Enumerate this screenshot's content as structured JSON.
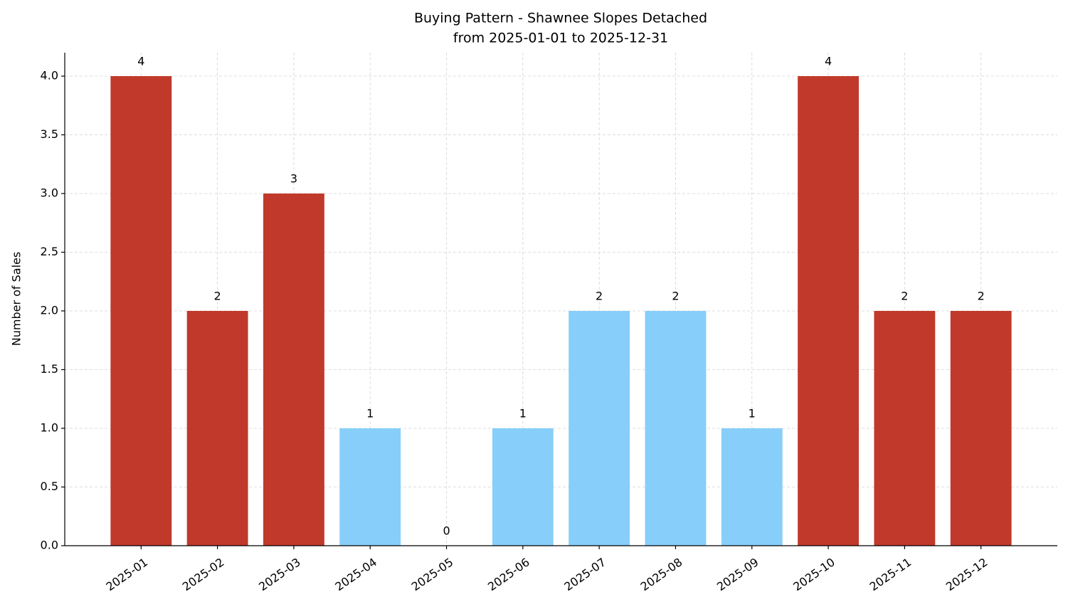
{
  "chart_data": {
    "type": "bar",
    "title": "Buying Pattern - Shawnee Slopes Detached",
    "subtitle": "from 2025-01-01 to 2025-12-31",
    "y_label": "Number of Sales",
    "categories": [
      "2025-01",
      "2025-02",
      "2025-03",
      "2025-04",
      "2025-05",
      "2025-06",
      "2025-07",
      "2025-08",
      "2025-09",
      "2025-10",
      "2025-11",
      "2025-12"
    ],
    "values": [
      4,
      2,
      3,
      1,
      0,
      1,
      2,
      2,
      1,
      4,
      2,
      2
    ],
    "colors": [
      "#c0392b",
      "#c0392b",
      "#c0392b",
      "#87cefa",
      "#87cefa",
      "#87cefa",
      "#87cefa",
      "#87cefa",
      "#87cefa",
      "#c0392b",
      "#c0392b",
      "#c0392b"
    ],
    "ylim": [
      0,
      4.2
    ],
    "yticks": [
      {
        "value": 0,
        "label": "0.0"
      },
      {
        "value": 0.5,
        "label": "0.5"
      },
      {
        "value": 1,
        "label": "1.0"
      },
      {
        "value": 1.5,
        "label": "1.5"
      },
      {
        "value": 2,
        "label": "2.0"
      },
      {
        "value": 2.5,
        "label": "2.5"
      },
      {
        "value": 3,
        "label": "3.0"
      },
      {
        "value": 3.5,
        "label": "3.5"
      },
      {
        "value": 4,
        "label": "4.0"
      }
    ],
    "grid": true
  }
}
